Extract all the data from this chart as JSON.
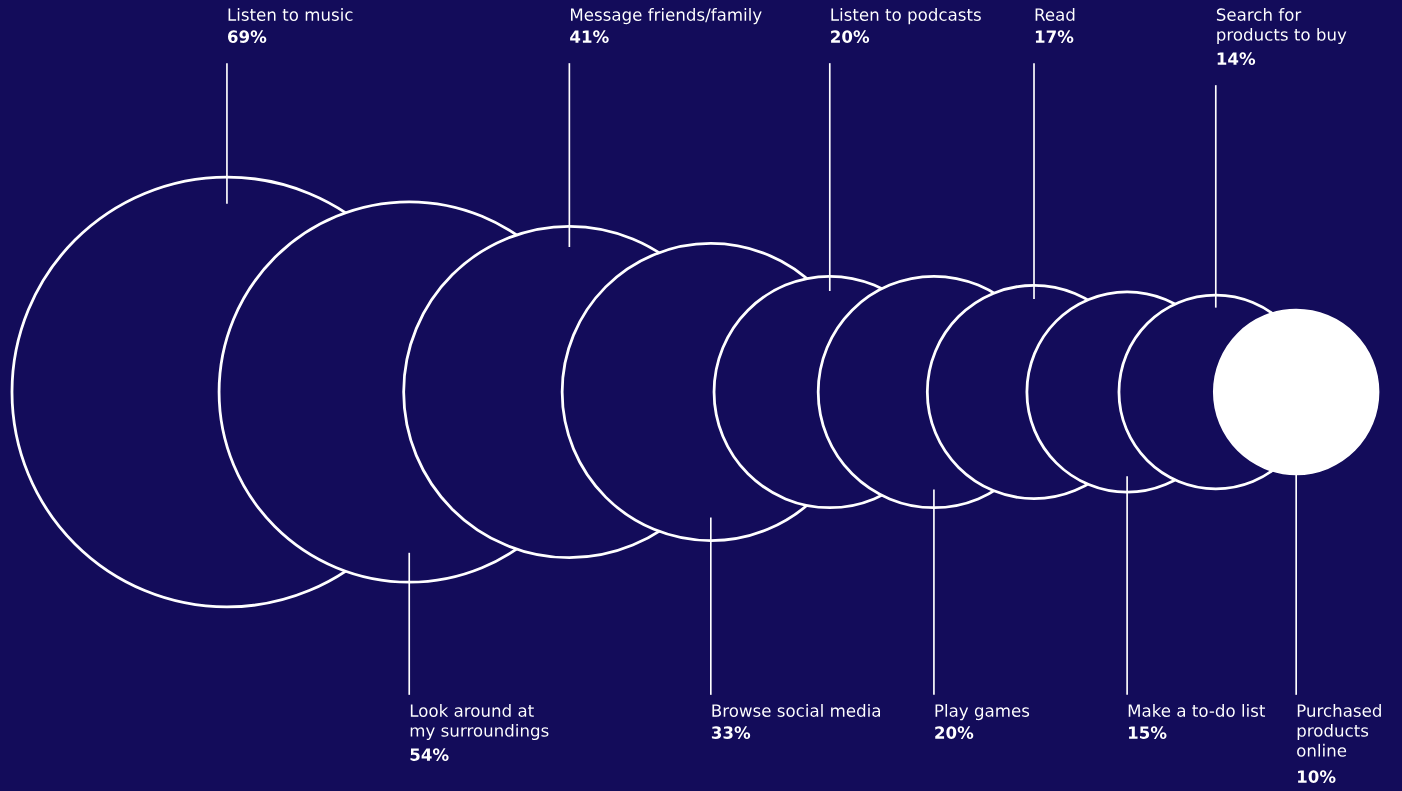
{
  "chart_data": {
    "type": "other",
    "categories": [
      "Listen to music",
      "Look around at\nmy surroundings",
      "Message friends/family",
      "Browse social media",
      "Listen to podcasts",
      "Play games",
      "Read",
      "Make a to-do list",
      "Search for\nproducts to buy",
      "Purchased\nproducts\nonline"
    ],
    "values": [
      69,
      54,
      41,
      33,
      20,
      20,
      17,
      15,
      14,
      10
    ],
    "value_labels": [
      "69%",
      "54%",
      "41%",
      "33%",
      "20%",
      "20%",
      "17%",
      "15%",
      "14%",
      "10%"
    ],
    "colors": [
      "#130c5a",
      "#130c5a",
      "#130c5a",
      "#130c5a",
      "#130c5a",
      "#130c5a",
      "#130c5a",
      "#130c5a",
      "#130c5a",
      "#ffffff"
    ]
  }
}
